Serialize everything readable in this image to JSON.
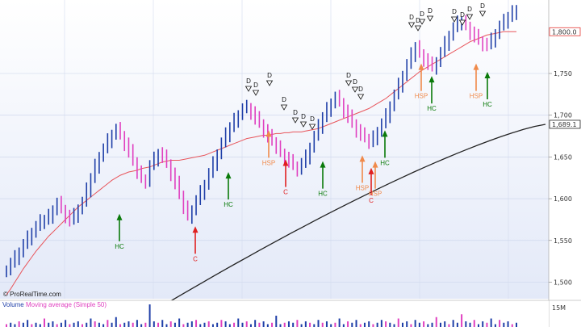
{
  "chart_data": {
    "type": "candlestick",
    "y_axis": {
      "ticks": [
        "1,500",
        "1,550",
        "1,600",
        "1,650",
        "1,700",
        "1,750"
      ],
      "tick_values": [
        1500,
        1550,
        1600,
        1650,
        1700,
        1750
      ],
      "range": [
        1485,
        1838
      ],
      "highlight_labels": [
        {
          "text": "1,800.0",
          "value": 1800,
          "color": "#e53935"
        },
        {
          "text": "1,689.1",
          "value": 1689.1,
          "color": "#222222"
        }
      ]
    },
    "series": {
      "price": [
        1516,
        1523,
        1530,
        1537,
        1545,
        1553,
        1560,
        1566,
        1572,
        1575,
        1580,
        1588,
        1595,
        1588,
        1580,
        1574,
        1580,
        1588,
        1595,
        1610,
        1625,
        1640,
        1652,
        1660,
        1670,
        1678,
        1683,
        1676,
        1666,
        1656,
        1644,
        1632,
        1625,
        1622,
        1640,
        1648,
        1655,
        1650,
        1642,
        1630,
        1618,
        1604,
        1590,
        1580,
        1588,
        1598,
        1608,
        1618,
        1630,
        1642,
        1654,
        1666,
        1676,
        1686,
        1695,
        1702,
        1708,
        1710,
        1704,
        1696,
        1690,
        1682,
        1674,
        1668,
        1662,
        1656,
        1650,
        1645,
        1640,
        1636,
        1642,
        1650,
        1662,
        1674,
        1686,
        1698,
        1708,
        1716,
        1722,
        1716,
        1706,
        1698,
        1690,
        1682,
        1676,
        1672,
        1668,
        1674,
        1682,
        1690,
        1700,
        1712,
        1724,
        1736,
        1748,
        1760,
        1772,
        1782,
        1775,
        1768,
        1762,
        1758,
        1765,
        1775,
        1786,
        1796,
        1804,
        1810,
        1812,
        1808,
        1800,
        1795,
        1790,
        1786,
        1784,
        1790,
        1798,
        1806,
        1812,
        1818,
        1824,
        1828
      ],
      "sma50": [
        1485,
        1492,
        1500,
        1508,
        1516,
        1523,
        1530,
        1537,
        1543,
        1549,
        1555,
        1560,
        1565,
        1570,
        1575,
        1580,
        1585,
        1590,
        1594,
        1598,
        1602,
        1606,
        1610,
        1614,
        1618,
        1622,
        1625,
        1628,
        1630,
        1632,
        1633,
        1634,
        1636,
        1637,
        1638,
        1640,
        1642,
        1644,
        1645,
        1646,
        1646,
        1646,
        1647,
        1648,
        1649,
        1650,
        1651,
        1652,
        1654,
        1656,
        1658,
        1660,
        1662,
        1664,
        1666,
        1668,
        1670,
        1672,
        1673,
        1674,
        1675,
        1676,
        1676,
        1677,
        1678,
        1678,
        1679,
        1679,
        1680,
        1680,
        1680,
        1681,
        1682,
        1683,
        1684,
        1686,
        1688,
        1690,
        1692,
        1694,
        1696,
        1698,
        1700,
        1702,
        1704,
        1706,
        1708,
        1711,
        1714,
        1717,
        1720,
        1724,
        1728,
        1732,
        1736,
        1740,
        1744,
        1748,
        1752,
        1755,
        1758,
        1761,
        1764,
        1767,
        1770,
        1773,
        1776,
        1779,
        1782,
        1785,
        1788,
        1790,
        1792,
        1794,
        1796,
        1797,
        1798,
        1799,
        1800,
        1800,
        1800,
        1800
      ],
      "sma200_start": 1430,
      "sma200_end": 1689.1
    },
    "markers": [
      {
        "label": "HC",
        "type": "arrow-up",
        "color": "#0a7a0a",
        "price": 1555
      },
      {
        "label": "C",
        "type": "arrow-up",
        "color": "#e02020",
        "price": 1540
      },
      {
        "label": "HC",
        "type": "arrow-up",
        "color": "#0a7a0a",
        "price": 1605
      },
      {
        "label": "HSP",
        "type": "arrow-up",
        "color": "#f08a4b",
        "price": 1655
      },
      {
        "label": "C",
        "type": "arrow-up",
        "color": "#e02020",
        "price": 1620
      },
      {
        "label": "HC",
        "type": "arrow-up",
        "color": "#0a7a0a",
        "price": 1618
      },
      {
        "label": "HSP",
        "type": "arrow-up",
        "color": "#f08a4b",
        "price": 1625
      },
      {
        "label": "C",
        "type": "arrow-up",
        "color": "#e02020",
        "price": 1610
      },
      {
        "label": "HSP",
        "type": "arrow-up",
        "color": "#f08a4b",
        "price": 1618
      },
      {
        "label": "HC",
        "type": "arrow-up",
        "color": "#0a7a0a",
        "price": 1655
      },
      {
        "label": "HSP",
        "type": "arrow-up",
        "color": "#f08a4b",
        "price": 1735
      },
      {
        "label": "HC",
        "type": "arrow-up",
        "color": "#0a7a0a",
        "price": 1720
      },
      {
        "label": "HSP",
        "type": "arrow-up",
        "color": "#f08a4b",
        "price": 1735
      },
      {
        "label": "HC",
        "type": "arrow-up",
        "color": "#0a7a0a",
        "price": 1725
      }
    ],
    "d_label": "D",
    "volume": {
      "legend": [
        "Volume",
        "Moving average (Simple 50)"
      ],
      "tick": "15M",
      "bars": [
        2,
        3,
        2,
        4,
        3,
        5,
        2,
        3,
        2,
        6,
        3,
        4,
        2,
        3,
        5,
        2,
        3,
        4,
        2,
        3,
        6,
        4,
        3,
        2,
        5,
        3,
        7,
        2,
        3,
        4,
        3,
        5,
        2,
        3,
        16,
        4,
        3,
        5,
        2,
        4,
        3,
        6,
        2,
        3,
        4,
        5,
        2,
        3,
        4,
        2,
        3,
        5,
        4,
        2,
        3,
        6,
        3,
        4,
        2,
        5,
        3,
        4,
        2,
        3,
        8,
        2,
        3,
        4,
        3,
        5,
        2,
        4,
        3,
        2,
        5,
        3,
        4,
        2,
        3,
        6,
        2,
        4,
        3,
        5,
        2,
        3,
        4,
        2,
        3,
        5,
        4,
        3,
        2,
        6,
        3,
        4,
        2,
        5,
        3,
        4,
        2,
        3,
        7,
        3,
        4,
        2,
        5,
        3,
        9,
        4,
        3,
        5,
        2,
        4,
        3,
        6,
        2,
        5,
        3,
        4,
        2,
        3
      ]
    }
  },
  "watermark": "© ProRealTime.com"
}
